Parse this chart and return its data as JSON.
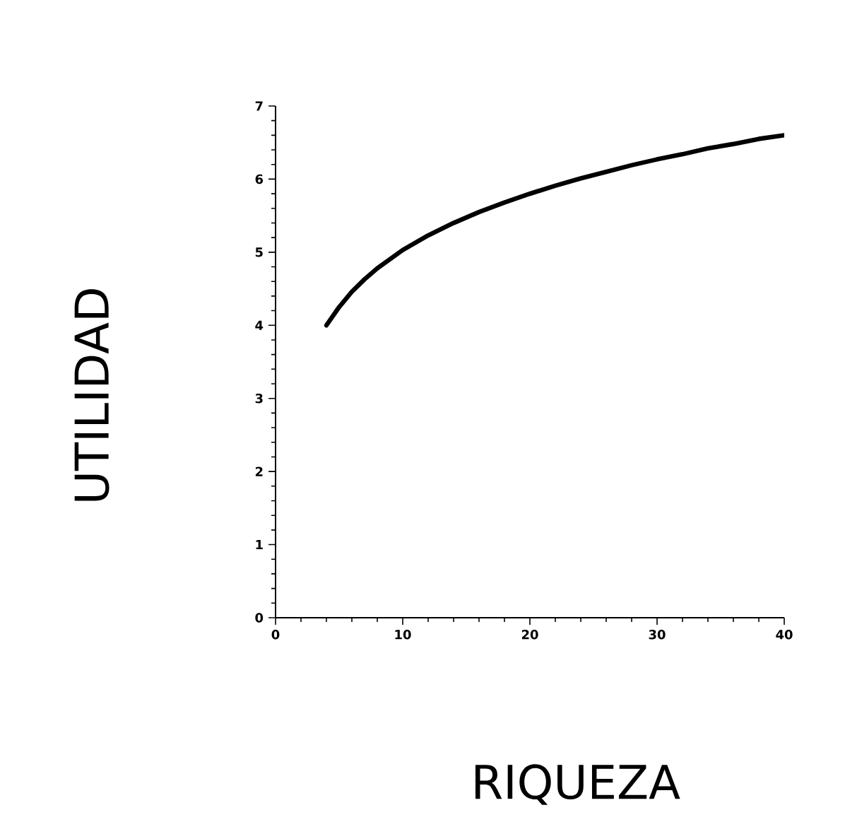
{
  "chart_data": {
    "type": "line",
    "xlabel": "RIQUEZA",
    "ylabel": "UTILIDAD",
    "x": [
      4,
      5,
      6,
      7,
      8,
      10,
      12,
      14,
      16,
      18,
      20,
      22,
      24,
      26,
      28,
      30,
      32,
      34,
      36,
      38,
      40
    ],
    "series": [
      {
        "color": "#000000",
        "values": [
          4.0,
          4.25,
          4.46,
          4.63,
          4.78,
          5.03,
          5.23,
          5.4,
          5.55,
          5.68,
          5.8,
          5.91,
          6.01,
          6.1,
          6.19,
          6.27,
          6.34,
          6.42,
          6.48,
          6.55,
          6.6
        ]
      }
    ],
    "xlim": [
      0,
      40
    ],
    "ylim": [
      0,
      7
    ],
    "xticks": [
      0,
      10,
      20,
      30,
      40
    ],
    "yticks": [
      0,
      1,
      2,
      3,
      4,
      5,
      6,
      7
    ],
    "grid": false,
    "marker": "none",
    "line_style": "solid"
  }
}
